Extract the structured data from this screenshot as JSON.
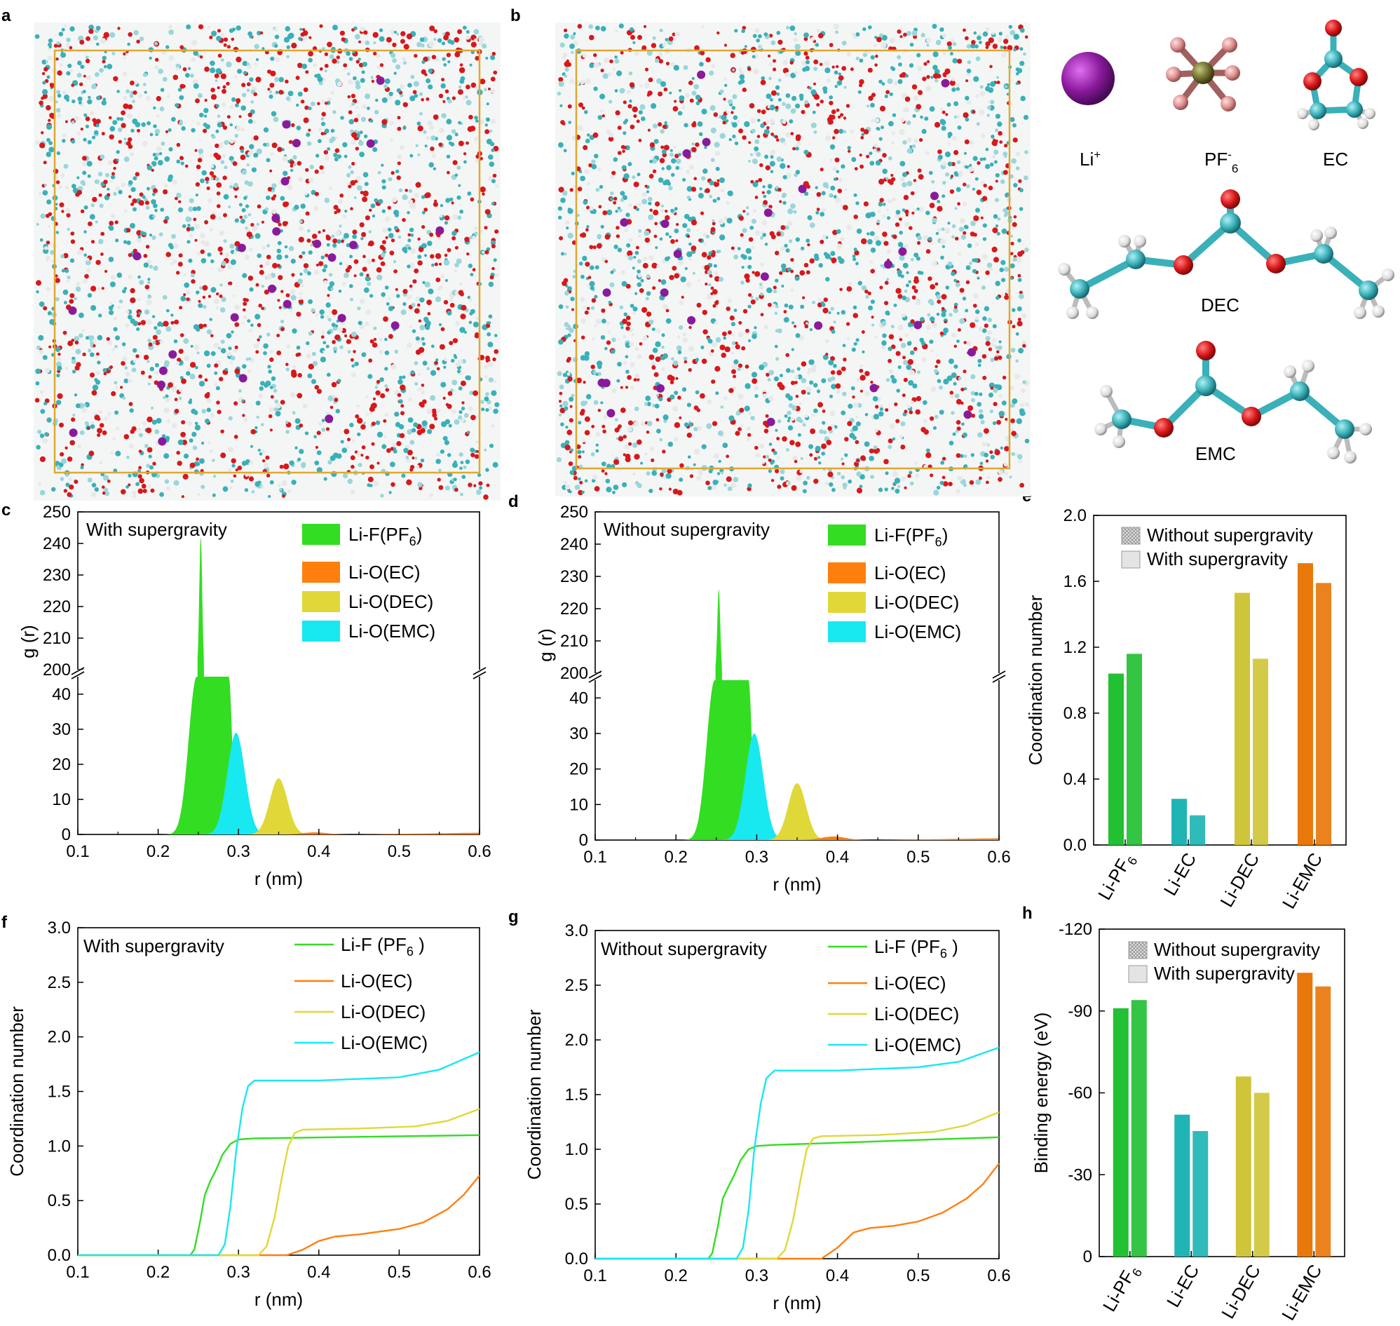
{
  "panel_labels": {
    "a": "a",
    "b": "b",
    "c": "c",
    "d": "d",
    "e": "e",
    "f": "f",
    "g": "g",
    "h": "h"
  },
  "molecules": {
    "li": {
      "main": "Li",
      "sup": "+"
    },
    "pf6": {
      "main": "PF",
      "sup": "-",
      "sub": "6"
    },
    "ec": "EC",
    "dec": "DEC",
    "emc": "EMC"
  },
  "colors": {
    "pf6": "#33dd22",
    "ec": "#ff7f0e",
    "dec": "#e0d838",
    "emc": "#18e8f0",
    "bar_pf6": "#22c033",
    "bar_ec": "#20b4b4",
    "bar_dec": "#cfc53a",
    "bar_emc": "#e8780a",
    "atom_li": "#8a1a9c",
    "atom_o": "#d8181a",
    "atom_c": "#3ab0b8",
    "atom_h": "#e8e8e8",
    "box": "#e0a830"
  },
  "chart_data": [
    {
      "id": "c",
      "type": "area",
      "note": "With supergravity",
      "xlabel": "r (nm)",
      "ylabel": "g (r)",
      "xlim": [
        0.1,
        0.6
      ],
      "xticks": [
        "0.1",
        "0.2",
        "0.3",
        "0.4",
        "0.5",
        "0.6"
      ],
      "ylim_lower": [
        0,
        45
      ],
      "yticks_lower": [
        "0",
        "10",
        "20",
        "30",
        "40"
      ],
      "ylim_upper": [
        200,
        250
      ],
      "yticks_upper": [
        "200",
        "210",
        "220",
        "230",
        "240",
        "250"
      ],
      "series": [
        {
          "name": "Li-F(PF6)",
          "label": "Li-F(PF",
          "sub": "6",
          "close": ")",
          "peak_r": 0.253,
          "peak": 242,
          "plateau": [
            0.248,
            0.288
          ]
        },
        {
          "name": "Li-O(EC)",
          "label": "Li-O(EC)",
          "peak_r": 0.395,
          "peak": 0.6
        },
        {
          "name": "Li-O(DEC)",
          "label": "Li-O(DEC)",
          "peak_r": 0.35,
          "peak": 16
        },
        {
          "name": "Li-O(EMC)",
          "label": "Li-O(EMC)",
          "peak_r": 0.297,
          "peak": 29
        }
      ]
    },
    {
      "id": "d",
      "type": "area",
      "note": "Without supergravity",
      "xlabel": "r (nm)",
      "ylabel": "g (r)",
      "xlim": [
        0.1,
        0.6
      ],
      "xticks": [
        "0.1",
        "0.2",
        "0.3",
        "0.4",
        "0.5",
        "0.6"
      ],
      "ylim_lower": [
        0,
        45
      ],
      "yticks_lower": [
        "0",
        "10",
        "20",
        "30",
        "40"
      ],
      "ylim_upper": [
        200,
        250
      ],
      "yticks_upper": [
        "200",
        "210",
        "220",
        "230",
        "240",
        "250"
      ],
      "series": [
        {
          "name": "Li-F(PF6)",
          "label": "Li-F(PF",
          "sub": "6",
          "close": ")",
          "peak_r": 0.253,
          "peak": 226,
          "plateau": [
            0.248,
            0.29
          ]
        },
        {
          "name": "Li-O(EC)",
          "label": "Li-O(EC)",
          "peak_r": 0.395,
          "peak": 1.0
        },
        {
          "name": "Li-O(DEC)",
          "label": "Li-O(DEC)",
          "peak_r": 0.35,
          "peak": 16
        },
        {
          "name": "Li-O(EMC)",
          "label": "Li-O(EMC)",
          "peak_r": 0.297,
          "peak": 30
        }
      ]
    },
    {
      "id": "e",
      "type": "bar",
      "ylabel": "Coordination number",
      "categories": [
        "Li-PF6",
        "Li-EC",
        "Li-DEC",
        "Li-EMC"
      ],
      "ylim": [
        0,
        2.0
      ],
      "yticks": [
        "0.0",
        "0.4",
        "0.8",
        "1.2",
        "1.6",
        "2.0"
      ],
      "legend": [
        "Without supergravity",
        "With supergravity"
      ],
      "series": [
        {
          "name": "Without supergravity",
          "values": [
            1.04,
            0.28,
            1.53,
            1.71
          ]
        },
        {
          "name": "With supergravity",
          "values": [
            1.16,
            0.18,
            1.13,
            1.59
          ]
        }
      ]
    },
    {
      "id": "f",
      "type": "line",
      "note": "With supergravity",
      "xlabel": "r (nm)",
      "ylabel": "Coordination number",
      "xlim": [
        0.1,
        0.6
      ],
      "ylim": [
        0,
        3.0
      ],
      "xticks": [
        "0.1",
        "0.2",
        "0.3",
        "0.4",
        "0.5",
        "0.6"
      ],
      "yticks": [
        "0.0",
        "0.5",
        "1.0",
        "1.5",
        "2.0",
        "2.5",
        "3.0"
      ],
      "series": [
        {
          "name": "Li-F (PF6 )",
          "label": "Li-F (PF",
          "sub": "6",
          "close": " )",
          "x": [
            0.1,
            0.24,
            0.245,
            0.252,
            0.258,
            0.265,
            0.272,
            0.28,
            0.29,
            0.3,
            0.32,
            0.6
          ],
          "y": [
            0,
            0,
            0.05,
            0.3,
            0.55,
            0.68,
            0.78,
            0.92,
            1.02,
            1.06,
            1.07,
            1.1
          ]
        },
        {
          "name": "Li-O(EC)",
          "label": "Li-O(EC)",
          "x": [
            0.1,
            0.36,
            0.38,
            0.4,
            0.42,
            0.45,
            0.5,
            0.53,
            0.56,
            0.58,
            0.6
          ],
          "y": [
            0,
            0,
            0.05,
            0.13,
            0.17,
            0.19,
            0.24,
            0.3,
            0.42,
            0.55,
            0.73
          ]
        },
        {
          "name": "Li-O(DEC)",
          "label": "Li-O(DEC)",
          "x": [
            0.1,
            0.325,
            0.335,
            0.345,
            0.355,
            0.362,
            0.37,
            0.38,
            0.45,
            0.52,
            0.56,
            0.6
          ],
          "y": [
            0,
            0,
            0.08,
            0.35,
            0.75,
            1.0,
            1.12,
            1.15,
            1.16,
            1.18,
            1.23,
            1.34
          ]
        },
        {
          "name": "Li-O(EMC)",
          "label": "Li-O(EMC)",
          "x": [
            0.1,
            0.275,
            0.283,
            0.29,
            0.297,
            0.305,
            0.312,
            0.32,
            0.4,
            0.5,
            0.55,
            0.6
          ],
          "y": [
            0,
            0,
            0.1,
            0.45,
            0.95,
            1.35,
            1.55,
            1.6,
            1.6,
            1.63,
            1.7,
            1.86
          ]
        }
      ]
    },
    {
      "id": "g",
      "type": "line",
      "note": "Without supergravity",
      "xlabel": "r (nm)",
      "ylabel": "Coordination number",
      "xlim": [
        0.1,
        0.6
      ],
      "ylim": [
        0,
        3.0
      ],
      "xticks": [
        "0.1",
        "0.2",
        "0.3",
        "0.4",
        "0.5",
        "0.6"
      ],
      "yticks": [
        "0.0",
        "0.5",
        "1.0",
        "1.5",
        "2.0",
        "2.5",
        "3.0"
      ],
      "series": [
        {
          "name": "Li-F (PF6 )",
          "label": "Li-F (PF",
          "sub": "6",
          "close": " )",
          "x": [
            0.1,
            0.24,
            0.245,
            0.252,
            0.258,
            0.265,
            0.272,
            0.28,
            0.29,
            0.3,
            0.32,
            0.6
          ],
          "y": [
            0,
            0,
            0.05,
            0.3,
            0.55,
            0.66,
            0.76,
            0.9,
            1.0,
            1.03,
            1.04,
            1.11
          ]
        },
        {
          "name": "Li-O(EC)",
          "label": "Li-O(EC)",
          "x": [
            0.1,
            0.38,
            0.4,
            0.42,
            0.44,
            0.47,
            0.5,
            0.53,
            0.56,
            0.58,
            0.6
          ],
          "y": [
            0,
            0,
            0.1,
            0.24,
            0.28,
            0.3,
            0.34,
            0.42,
            0.55,
            0.68,
            0.87
          ]
        },
        {
          "name": "Li-O(DEC)",
          "label": "Li-O(DEC)",
          "x": [
            0.1,
            0.325,
            0.335,
            0.345,
            0.355,
            0.362,
            0.37,
            0.38,
            0.45,
            0.52,
            0.56,
            0.6
          ],
          "y": [
            0,
            0,
            0.08,
            0.35,
            0.75,
            1.0,
            1.1,
            1.12,
            1.13,
            1.16,
            1.22,
            1.34
          ]
        },
        {
          "name": "Li-O(EMC)",
          "label": "Li-O(EMC)",
          "x": [
            0.1,
            0.275,
            0.283,
            0.29,
            0.297,
            0.305,
            0.312,
            0.322,
            0.4,
            0.5,
            0.55,
            0.6
          ],
          "y": [
            0,
            0,
            0.1,
            0.45,
            1.0,
            1.42,
            1.65,
            1.72,
            1.72,
            1.75,
            1.8,
            1.93
          ]
        }
      ]
    },
    {
      "id": "h",
      "type": "bar",
      "ylabel": "Binding energy (eV)",
      "categories": [
        "Li-PF6",
        "Li-EC",
        "Li-DEC",
        "Li-EMC"
      ],
      "ylim": [
        0,
        -120
      ],
      "yticks": [
        "0",
        "-30",
        "-60",
        "-90",
        "-120"
      ],
      "legend": [
        "Without supergravity",
        "With supergravity"
      ],
      "series": [
        {
          "name": "Without supergravity",
          "values": [
            -91,
            -52,
            -66,
            -104
          ]
        },
        {
          "name": "With supergravity",
          "values": [
            -94,
            -46,
            -60,
            -99
          ]
        }
      ]
    }
  ]
}
